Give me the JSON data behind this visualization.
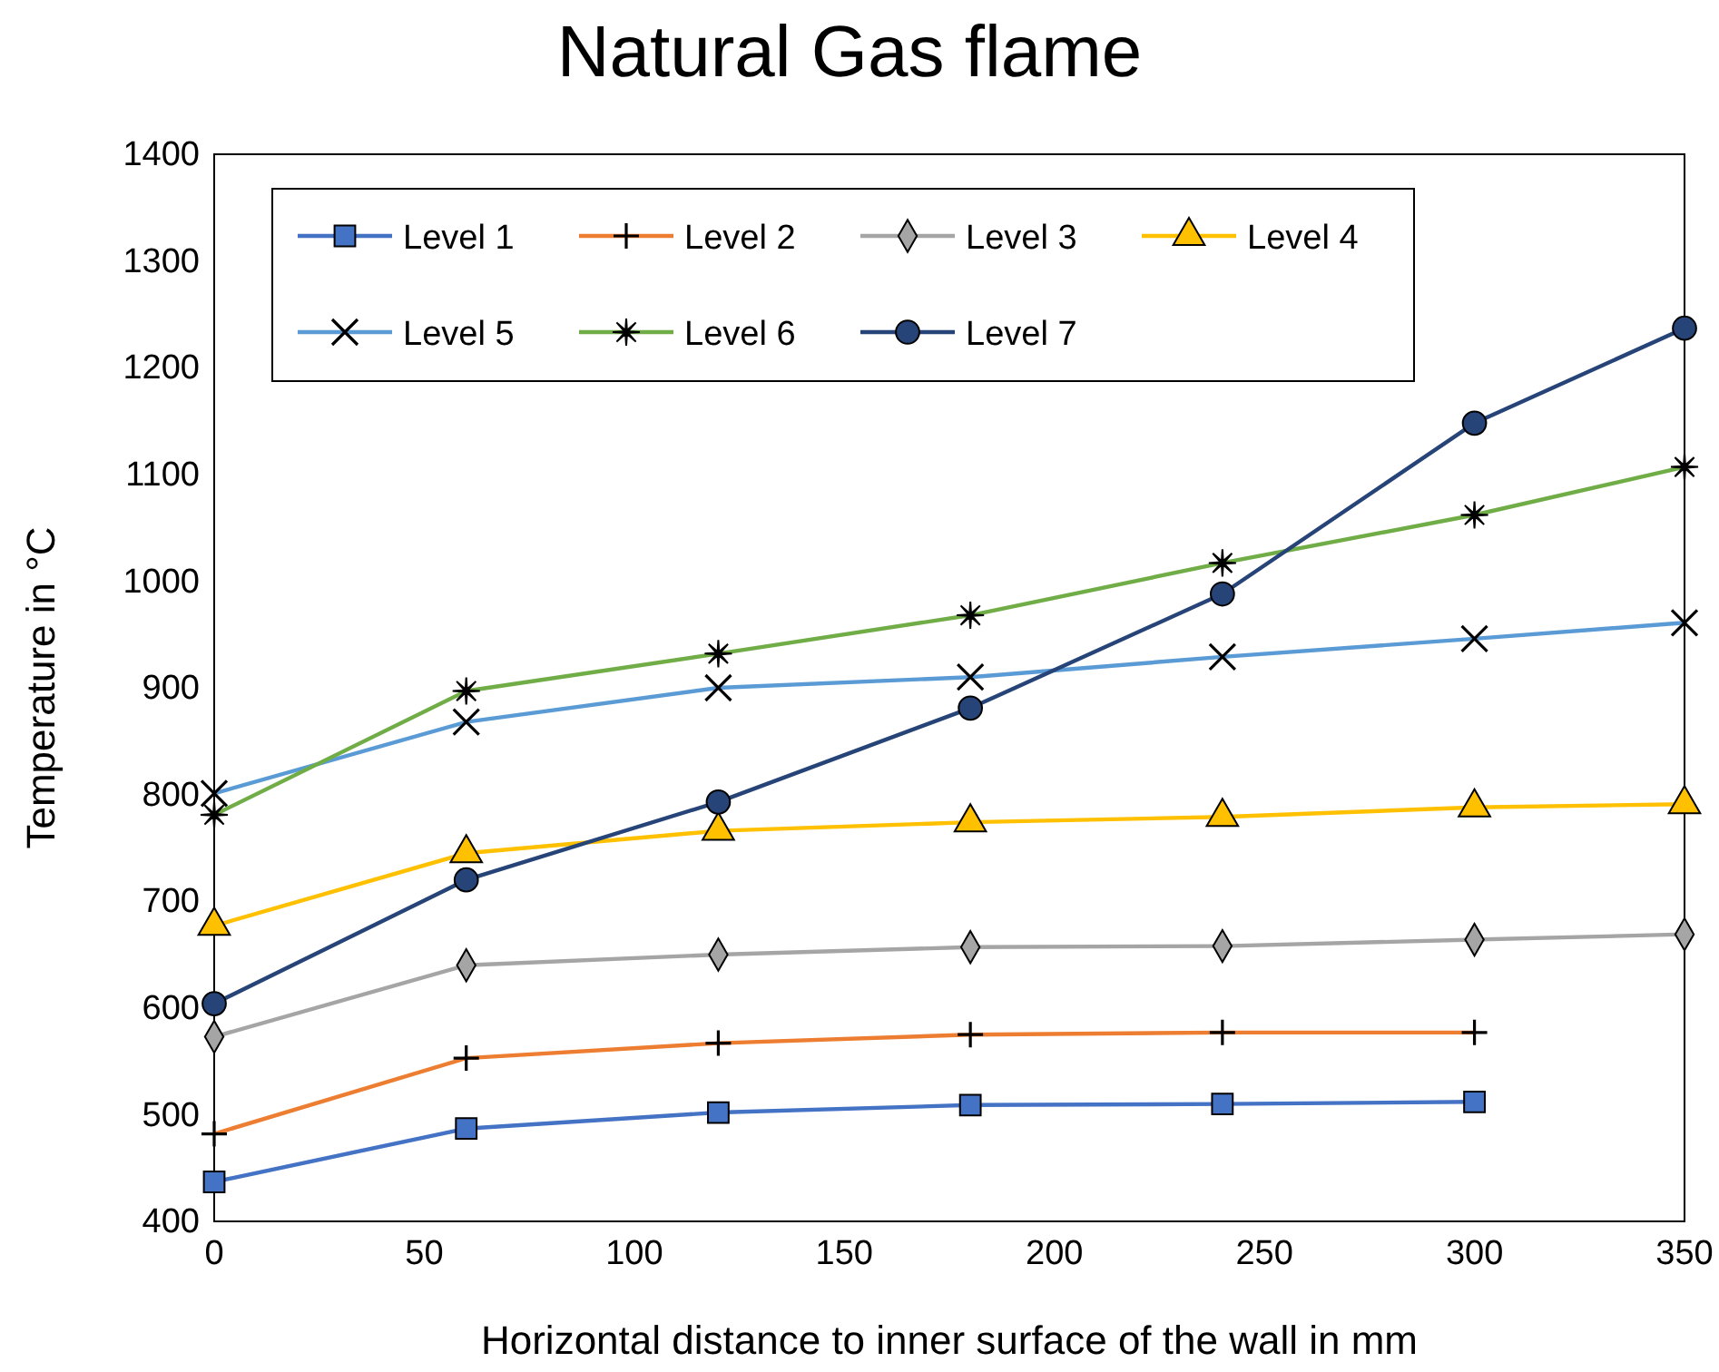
{
  "chart_data": {
    "type": "line",
    "title": "Natural Gas flame",
    "xlabel": "Horizontal distance to inner surface of the wall in mm",
    "ylabel": "Temperature in °C",
    "x": [
      0,
      60,
      120,
      180,
      240,
      300,
      350
    ],
    "xlim": [
      0,
      350
    ],
    "xticks": [
      0,
      50,
      100,
      150,
      200,
      250,
      300,
      350
    ],
    "ylim": [
      400,
      1400
    ],
    "yticks": [
      400,
      500,
      600,
      700,
      800,
      900,
      1000,
      1100,
      1200,
      1300,
      1400
    ],
    "grid": false,
    "legend": "top left",
    "line_style": "solid",
    "series": [
      {
        "name": "Level 1",
        "color": "#4472c4",
        "marker": "square",
        "values": [
          437,
          487,
          502,
          509,
          510,
          512,
          null
        ]
      },
      {
        "name": "Level 2",
        "color": "#ed7d31",
        "marker": "cross",
        "values": [
          482,
          553,
          567,
          575,
          577,
          577,
          null
        ]
      },
      {
        "name": "Level 3",
        "color": "#a5a5a5",
        "marker": "diamond",
        "values": [
          573,
          640,
          650,
          657,
          658,
          664,
          669
        ]
      },
      {
        "name": "Level 4",
        "color": "#ffc000",
        "marker": "triangle",
        "values": [
          677,
          745,
          766,
          774,
          779,
          788,
          791
        ]
      },
      {
        "name": "Level 5",
        "color": "#5b9bd5",
        "marker": "x",
        "values": [
          801,
          868,
          900,
          910,
          929,
          946,
          961
        ]
      },
      {
        "name": "Level 6",
        "color": "#70ad47",
        "marker": "star",
        "values": [
          781,
          897,
          932,
          968,
          1017,
          1062,
          1107
        ]
      },
      {
        "name": "Level 7",
        "color": "#264478",
        "marker": "circle",
        "values": [
          604,
          720,
          793,
          881,
          988,
          1148,
          1237
        ]
      }
    ]
  }
}
